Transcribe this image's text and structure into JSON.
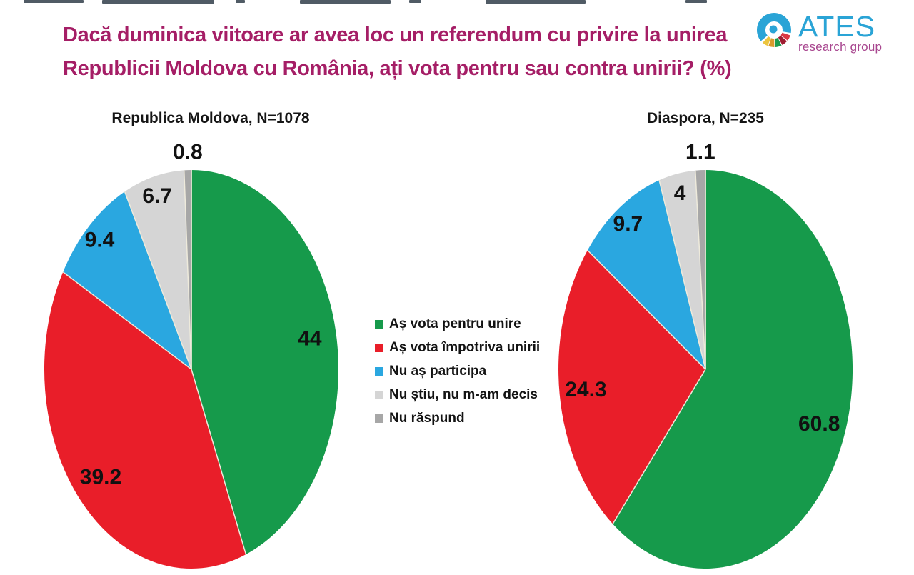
{
  "header": {
    "question_line1": "Dacă duminica viitoare ar avea loc un referendum cu privire la unirea",
    "question_line2": "Republicii Moldova cu România, ați vota pentru sau contra unirii? (%)",
    "title_color": "#a51e66"
  },
  "logo": {
    "name": "ATES",
    "subtitle": "research group",
    "icon_name": "ates-circular-logo",
    "name_color": "#2aa4d6",
    "subtitle_color": "#a8468f"
  },
  "legend": {
    "items": [
      {
        "label": "Aș vota pentru unire",
        "color": "#169a4b"
      },
      {
        "label": "Aș vota împotriva unirii",
        "color": "#e91e29"
      },
      {
        "label": "Nu aș participa",
        "color": "#2aa7e0"
      },
      {
        "label": "Nu știu, nu m-am decis",
        "color": "#d5d5d5"
      },
      {
        "label": "Nu răspund",
        "color": "#a7a7a7"
      }
    ]
  },
  "chart_data": [
    {
      "type": "pie",
      "title": "Republica Moldova, N=1078",
      "categories": [
        "Aș vota pentru unire",
        "Aș vota împotriva unirii",
        "Nu aș participa",
        "Nu știu, nu m-am decis",
        "Nu răspund"
      ],
      "values": [
        44,
        39.2,
        9.4,
        6.7,
        0.8
      ],
      "colors": [
        "#169a4b",
        "#e91e29",
        "#2aa7e0",
        "#d5d5d5",
        "#a7a7a7"
      ],
      "units": "%",
      "start_angle_deg": 0,
      "direction": "clockwise",
      "legend_position": "right-center-of-page",
      "label_color": "#111111"
    },
    {
      "type": "pie",
      "title": "Diaspora, N=235",
      "categories": [
        "Aș vota pentru unire",
        "Aș vota împotriva unirii",
        "Nu aș participa",
        "Nu știu, nu m-am decis",
        "Nu răspund"
      ],
      "values": [
        60.8,
        24.3,
        9.7,
        4,
        1.1
      ],
      "colors": [
        "#169a4b",
        "#e91e29",
        "#2aa7e0",
        "#d5d5d5",
        "#a7a7a7"
      ],
      "units": "%",
      "start_angle_deg": 0,
      "direction": "clockwise",
      "legend_position": "left-center-of-page",
      "label_color": "#111111"
    }
  ]
}
